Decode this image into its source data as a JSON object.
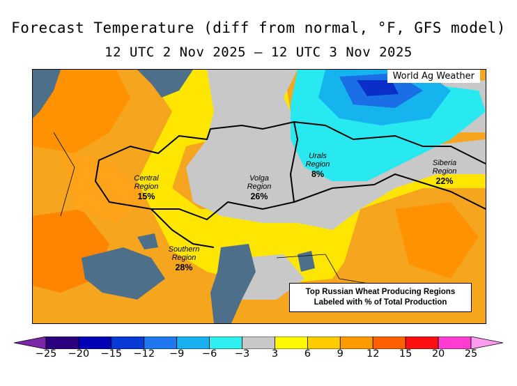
{
  "title": "Forecast Temperature (diff from normal, °F, GFS model)",
  "subtitle": "12 UTC 2 Nov 2025 — 12 UTC 3 Nov 2025",
  "credit": "World Ag Weather",
  "note": {
    "line1": "Top Russian Wheat Producing Regions",
    "line2": "Labeled with % of Total Production"
  },
  "regions": [
    {
      "name": "Central Region",
      "name_line1": "Central",
      "name_line2": "Region",
      "pct": "15%"
    },
    {
      "name": "Volga Region",
      "name_line1": "Volga",
      "name_line2": "Region",
      "pct": "26%"
    },
    {
      "name": "Urals Region",
      "name_line1": "Urals",
      "name_line2": "Region",
      "pct": "8%"
    },
    {
      "name": "Siberia Region",
      "name_line1": "Siberia",
      "name_line2": "Region",
      "pct": "22%"
    },
    {
      "name": "Southern Region",
      "name_line1": "Southern",
      "name_line2": "Region",
      "pct": "28%"
    }
  ],
  "colorbar": {
    "labels": [
      "−25",
      "−20",
      "−15",
      "−12",
      "−9",
      "−6",
      "−3",
      "3",
      "6",
      "9",
      "12",
      "15",
      "20",
      "25"
    ],
    "colors": [
      "#7b28a8",
      "#2a007f",
      "#0000b4",
      "#0a3ad6",
      "#1f78f0",
      "#18b0f0",
      "#2ef0f0",
      "#c8c8c8",
      "#fff800",
      "#ffcc00",
      "#ff9b00",
      "#ff6000",
      "#ff1010",
      "#ff3cd0",
      "#ff9cf0"
    ]
  },
  "colors": {
    "water": "#4d6f8a",
    "land_warm": "#f4a21e",
    "land_hot": "#ff8a00",
    "neutral": "#c8c8c8",
    "mild": "#ffee00",
    "cold": "#18c8f0",
    "colder": "#1a5ae0"
  }
}
